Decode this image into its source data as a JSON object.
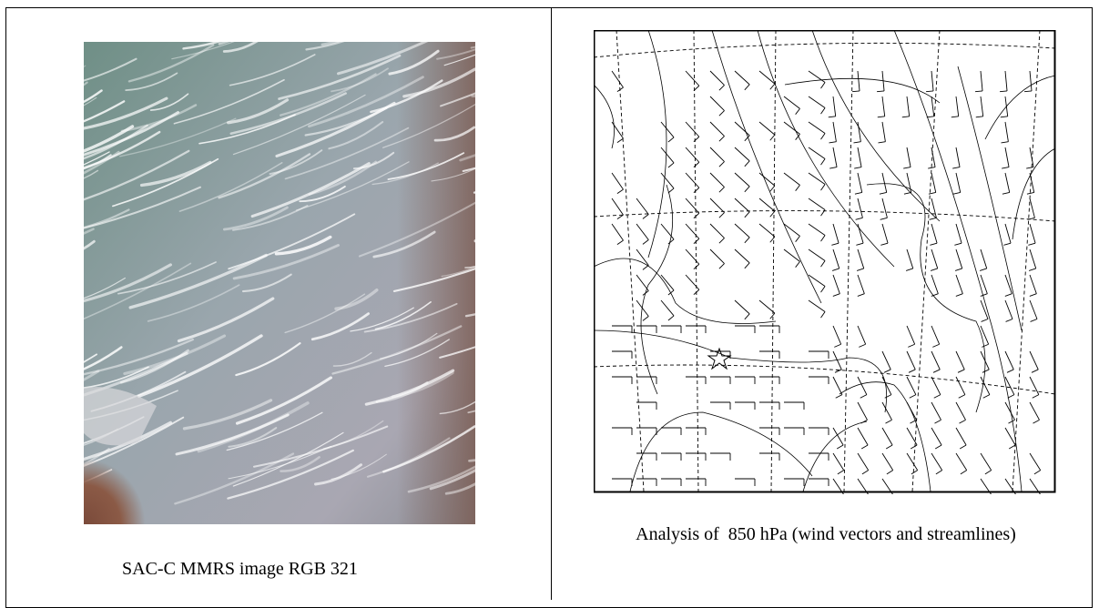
{
  "cells": [
    {
      "caption": "SAC-C MMRS image RGB 321"
    },
    {
      "caption": "Analysis of  850 hPa (wind vectors and streamlines)"
    }
  ]
}
